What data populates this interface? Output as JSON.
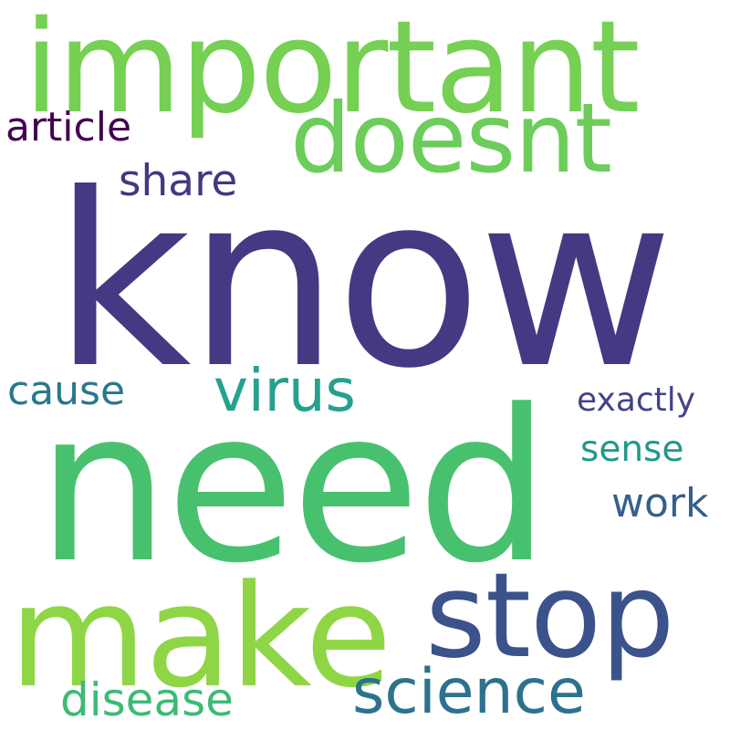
{
  "words": {
    "know": {
      "text": "know",
      "color": "#443983"
    },
    "need": {
      "text": "need",
      "color": "#48c16e"
    },
    "important": {
      "text": "important",
      "color": "#75d054"
    },
    "make": {
      "text": "make",
      "color": "#8ed645"
    },
    "doesnt": {
      "text": "doesnt",
      "color": "#6ccd5a"
    },
    "stop": {
      "text": "stop",
      "color": "#3b528b"
    },
    "science": {
      "text": "science",
      "color": "#2c728e"
    },
    "virus": {
      "text": "virus",
      "color": "#25a18e"
    },
    "disease": {
      "text": "disease",
      "color": "#3bbb75"
    },
    "share": {
      "text": "share",
      "color": "#453781"
    },
    "article": {
      "text": "article",
      "color": "#440154"
    },
    "cause": {
      "text": "cause",
      "color": "#2a788e"
    },
    "work": {
      "text": "work",
      "color": "#355f8d"
    },
    "sense": {
      "text": "sense",
      "color": "#1f988b"
    },
    "exactly": {
      "text": "exactly",
      "color": "#414487"
    }
  }
}
